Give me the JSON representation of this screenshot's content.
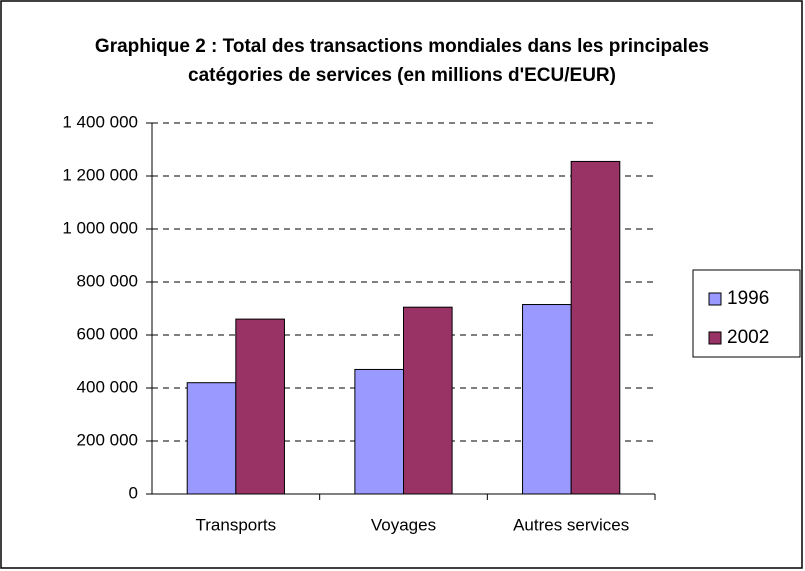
{
  "chart_data": {
    "type": "bar",
    "title": [
      "Graphique 2 : Total des transactions mondiales dans les principales",
      "catégories de services (en millions d'ECU/EUR)"
    ],
    "categories": [
      "Transports",
      "Voyages",
      "Autres services"
    ],
    "series": [
      {
        "name": "1996",
        "color": "#9999ff",
        "values": [
          420000,
          470000,
          715000
        ]
      },
      {
        "name": "2002",
        "color": "#993366",
        "values": [
          660000,
          705000,
          1255000
        ]
      }
    ],
    "ylim": [
      0,
      1400000
    ],
    "yticks": [
      0,
      {
        "value": 200000,
        "label": "200 000"
      },
      {
        "value": 400000,
        "label": "400 000"
      },
      {
        "value": 600000,
        "label": "600 000"
      },
      {
        "value": 800000,
        "label": "800 000"
      },
      {
        "value": 1000000,
        "label": "1 000 000"
      },
      {
        "value": 1200000,
        "label": "1 200 000"
      },
      {
        "value": 1400000,
        "label": "1 400 000"
      }
    ],
    "grid": true,
    "legend": "right"
  }
}
